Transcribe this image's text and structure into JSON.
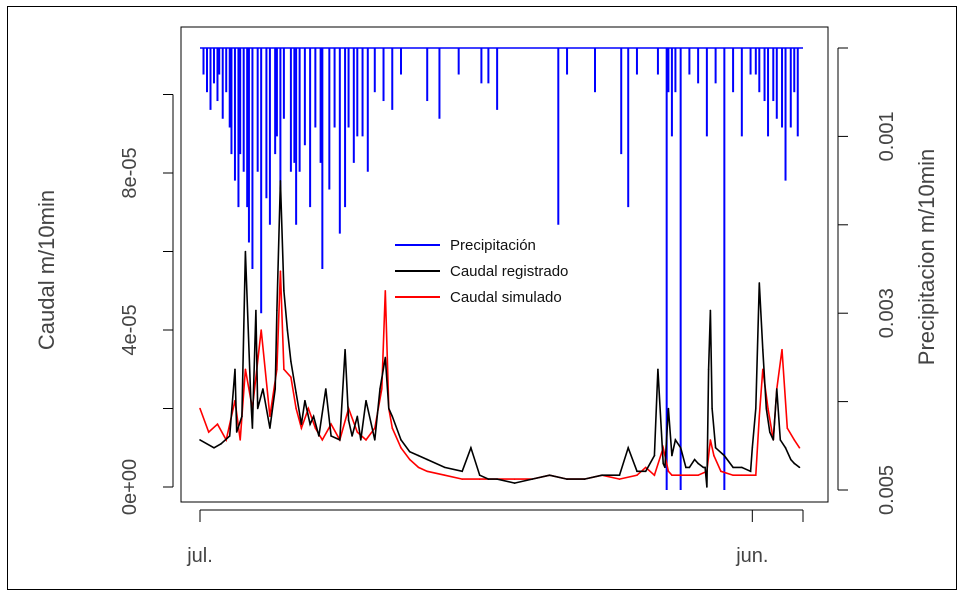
{
  "chart_data": {
    "type": "line",
    "title": "",
    "ylabel": "Caudal m/10min",
    "ylabel_right": "Precipitacion m/10min",
    "x_tick_labels": [
      "jul.",
      "jun."
    ],
    "y_left": {
      "lim": [
        0,
        0.00011
      ],
      "ticks": [
        0,
        2e-05,
        4e-05,
        6e-05,
        8e-05,
        0.0001
      ],
      "tick_labels": [
        "0e+00",
        "",
        "4e-05",
        "",
        "8e-05",
        ""
      ]
    },
    "y_right": {
      "lim": [
        0.0052,
        0.0
      ],
      "reversed": true,
      "ticks": [
        0.0,
        0.001,
        0.002,
        0.003,
        0.004,
        0.005
      ],
      "tick_labels": [
        "",
        "0.001",
        "",
        "0.003",
        "",
        "0.005"
      ]
    },
    "legend": {
      "placement": "center",
      "entries": [
        {
          "label": "Precipitación",
          "color": "#0000ff"
        },
        {
          "label": "Caudal registrado",
          "color": "#000000"
        },
        {
          "label": "Caudal simulado",
          "color": "#ff0000"
        }
      ]
    },
    "x_range_days": [
      0,
      345
    ],
    "series": [
      {
        "name": "Precipitación",
        "axis": "right",
        "color": "#0000ff",
        "x": [
          2,
          4,
          6,
          8,
          10,
          11,
          13,
          15,
          17,
          18,
          20,
          22,
          23,
          25,
          27,
          28,
          30,
          33,
          35,
          38,
          40,
          43,
          44,
          46,
          48,
          52,
          54,
          55,
          57,
          60,
          63,
          66,
          69,
          70,
          74,
          77,
          80,
          83,
          85,
          88,
          90,
          93,
          96,
          100,
          105,
          110,
          115,
          130,
          137,
          148,
          161,
          165,
          170,
          205,
          210,
          226,
          241,
          245,
          250,
          262,
          267,
          268,
          270,
          272,
          275,
          280,
          285,
          290,
          295,
          300,
          305,
          310,
          315,
          318,
          320,
          323,
          325,
          328,
          330,
          333,
          335,
          338,
          340,
          342
        ],
        "values": [
          0.0003,
          0.0005,
          0.0007,
          0.0004,
          0.0006,
          0.0003,
          0.0008,
          0.0005,
          0.0009,
          0.0012,
          0.0015,
          0.0018,
          0.0012,
          0.0014,
          0.0018,
          0.0022,
          0.0025,
          0.0014,
          0.003,
          0.0017,
          0.002,
          0.0012,
          0.001,
          0.0016,
          0.0008,
          0.0014,
          0.0013,
          0.002,
          0.0014,
          0.0011,
          0.0018,
          0.0009,
          0.0013,
          0.0025,
          0.0016,
          0.0009,
          0.0021,
          0.0018,
          0.0009,
          0.0013,
          0.001,
          0.001,
          0.0014,
          0.0005,
          0.0006,
          0.0007,
          0.0003,
          0.0006,
          0.0008,
          0.0003,
          0.0004,
          0.0004,
          0.0007,
          0.002,
          0.0003,
          0.0005,
          0.0012,
          0.0018,
          0.0003,
          0.0003,
          0.005,
          0.0005,
          0.001,
          0.0005,
          0.005,
          0.0003,
          0.0004,
          0.001,
          0.0004,
          0.005,
          0.0005,
          0.001,
          0.0003,
          0.0003,
          0.0005,
          0.0006,
          0.001,
          0.0006,
          0.0008,
          0.0009,
          0.0015,
          0.0009,
          0.0005,
          0.001
        ]
      },
      {
        "name": "Caudal registrado",
        "axis": "left",
        "color": "#000000",
        "x": [
          0,
          8,
          12,
          17,
          20,
          21,
          24,
          26,
          29,
          30,
          32,
          33,
          36,
          40,
          43,
          44,
          46,
          48,
          50,
          52,
          55,
          58,
          60,
          63,
          65,
          68,
          72,
          75,
          80,
          83,
          85,
          87,
          90,
          92,
          95,
          100,
          103,
          106,
          108,
          110,
          115,
          120,
          125,
          130,
          140,
          150,
          155,
          160,
          165,
          170,
          180,
          190,
          200,
          210,
          220,
          230,
          240,
          245,
          250,
          255,
          260,
          262,
          265,
          266,
          268,
          270,
          272,
          275,
          278,
          280,
          283,
          285,
          288,
          289,
          290,
          291,
          292,
          293,
          295,
          300,
          305,
          310,
          315,
          316,
          318,
          320,
          322,
          324,
          326,
          328,
          330,
          332,
          335,
          338,
          340,
          343
        ],
        "values": [
          1.2e-05,
          1e-05,
          1.1e-05,
          1.3e-05,
          3e-05,
          1.4e-05,
          1.8e-05,
          6e-05,
          2.3e-05,
          1.5e-05,
          4.5e-05,
          2e-05,
          2.5e-05,
          1.5e-05,
          2.5e-05,
          4.5e-05,
          7.8e-05,
          5e-05,
          4e-05,
          3.2e-05,
          2.4e-05,
          1.6e-05,
          2.2e-05,
          1.6e-05,
          1.8e-05,
          1.3e-05,
          2.5e-05,
          1.3e-05,
          1.2e-05,
          3.5e-05,
          1.7e-05,
          1.3e-05,
          1.8e-05,
          1.2e-05,
          2.2e-05,
          1.2e-05,
          2.5e-05,
          3.3e-05,
          2e-05,
          1.8e-05,
          1.2e-05,
          9e-06,
          8e-06,
          7e-06,
          5e-06,
          4e-06,
          1e-05,
          3e-06,
          2e-06,
          2e-06,
          1e-06,
          2e-06,
          3e-06,
          2e-06,
          2e-06,
          3e-06,
          3e-06,
          1e-05,
          4e-06,
          4e-06,
          8e-06,
          3e-05,
          6e-06,
          5e-06,
          2e-05,
          8e-06,
          1.2e-05,
          1e-05,
          5e-06,
          5e-06,
          7e-06,
          6e-06,
          5e-06,
          5e-06,
          0.0,
          3e-05,
          4.5e-05,
          2e-05,
          1e-05,
          8e-06,
          5e-06,
          5e-06,
          4e-06,
          1e-05,
          2e-05,
          5.2e-05,
          3.5e-05,
          2e-05,
          1.4e-05,
          1.2e-05,
          2.5e-05,
          1.2e-05,
          1e-05,
          7e-06,
          6e-06,
          5e-06
        ]
      },
      {
        "name": "Caudal simulado",
        "axis": "left",
        "color": "#ff0000",
        "x": [
          0,
          5,
          10,
          15,
          20,
          23,
          26,
          30,
          35,
          40,
          44,
          46,
          48,
          52,
          55,
          58,
          62,
          66,
          70,
          75,
          80,
          85,
          90,
          95,
          100,
          104,
          106,
          108,
          110,
          115,
          120,
          125,
          130,
          140,
          150,
          160,
          170,
          180,
          190,
          200,
          210,
          220,
          230,
          240,
          250,
          255,
          260,
          265,
          268,
          270,
          275,
          280,
          285,
          290,
          292,
          294,
          298,
          305,
          310,
          315,
          318,
          320,
          322,
          325,
          328,
          330,
          333,
          336,
          340,
          343
        ],
        "values": [
          2e-05,
          1.4e-05,
          1.6e-05,
          1.2e-05,
          2.2e-05,
          1.2e-05,
          3e-05,
          2e-05,
          4e-05,
          1.8e-05,
          3e-05,
          5.5e-05,
          3e-05,
          2.8e-05,
          2e-05,
          1.5e-05,
          2e-05,
          1.5e-05,
          1.2e-05,
          1.6e-05,
          1.2e-05,
          2e-05,
          1.4e-05,
          1.2e-05,
          1.5e-05,
          2.5e-05,
          5e-05,
          2e-05,
          1.5e-05,
          1e-05,
          7e-06,
          5e-06,
          4e-06,
          3e-06,
          2e-06,
          2e-06,
          2e-06,
          2e-06,
          2e-06,
          3e-06,
          2e-06,
          2e-06,
          3e-06,
          2e-06,
          3e-06,
          5e-06,
          3e-06,
          1e-05,
          4e-06,
          3e-06,
          3e-06,
          3e-06,
          3e-06,
          4e-06,
          1.2e-05,
          8e-06,
          4e-06,
          3e-06,
          3e-06,
          3e-06,
          3e-06,
          1.8e-05,
          3e-05,
          2e-05,
          1.2e-05,
          2.5e-05,
          3.5e-05,
          1.5e-05,
          1.2e-05,
          1e-05
        ]
      }
    ]
  }
}
